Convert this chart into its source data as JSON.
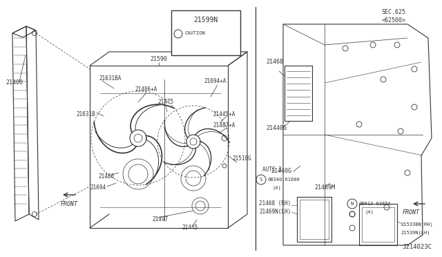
{
  "bg_color": "#ffffff",
  "diagram_id": "J214023C",
  "caution_label": "21599N",
  "caution_text": "CAUTION",
  "lc": "#333333",
  "figsize": [
    6.4,
    3.72
  ],
  "dpi": 100
}
